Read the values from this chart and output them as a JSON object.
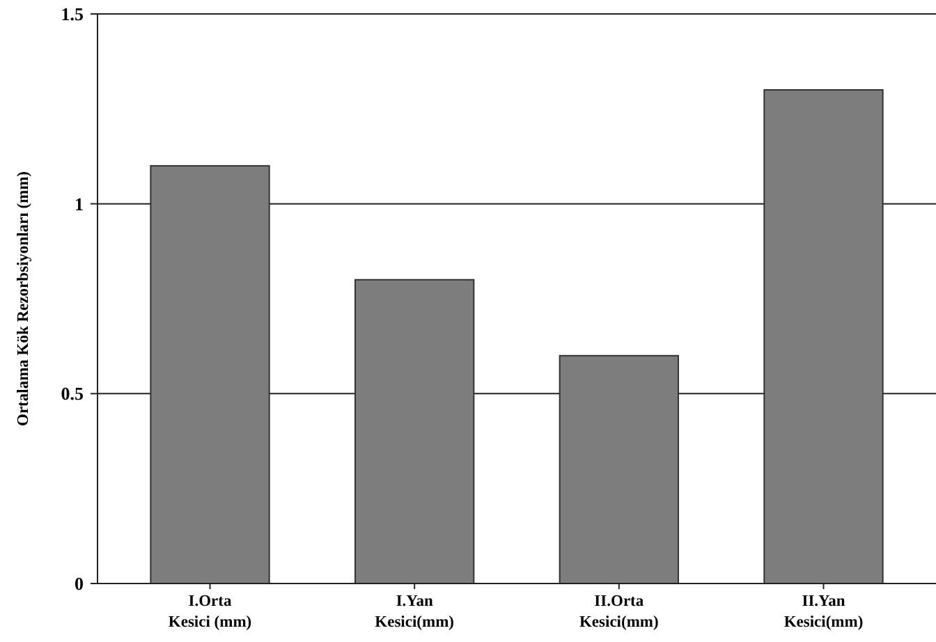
{
  "chart_data": {
    "type": "bar",
    "ylabel": "Ortalama Kök Rezorbsiyonları (mm)",
    "categories": [
      "I.Orta\nKesici (mm)",
      "I.Yan\nKesici(mm)",
      "II.Orta\nKesici(mm)",
      "II.Yan\nKesici(mm)"
    ],
    "values": [
      1.1,
      0.8,
      0.6,
      1.3
    ],
    "color": "#7d7d7d",
    "ylim": [
      0,
      1.5
    ],
    "yticks": [
      0,
      0.5,
      1,
      1.5
    ],
    "grid": "y"
  }
}
